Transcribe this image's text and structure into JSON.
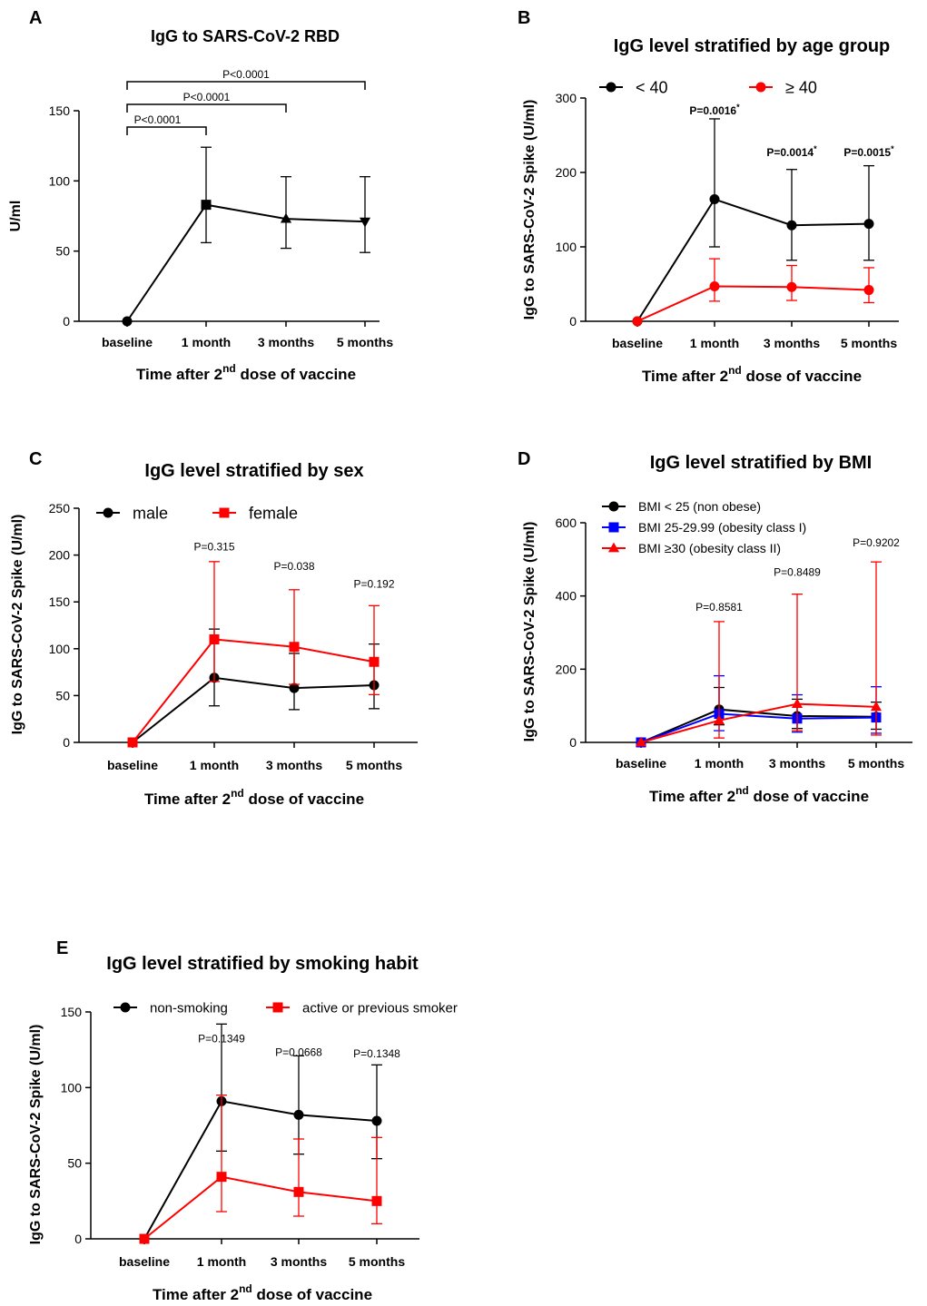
{
  "chart_data": [
    {
      "id": "A",
      "letter": "A",
      "type": "line",
      "title": "IgG to SARS-CoV-2 RBD",
      "xlabel": "Time after 2",
      "xlabel_sup": "nd",
      "xlabel_rest": " dose of vaccine",
      "ylabel": "U/ml",
      "ylim": [
        0,
        150
      ],
      "yticks": [
        0,
        50,
        100,
        150
      ],
      "categories": [
        "baseline",
        "1 month",
        "3 months",
        "5 months"
      ],
      "series": [
        {
          "color": "#000000",
          "marker": "mixed",
          "markers": [
            "circle",
            "square",
            "triangle",
            "triangle-down"
          ],
          "values": [
            0,
            83,
            73,
            71
          ],
          "err_hi": [
            0,
            124,
            103,
            103
          ],
          "err_lo": [
            0,
            56,
            52,
            49
          ]
        }
      ],
      "brackets": [
        {
          "text": "P<0.0001",
          "from": 0,
          "to": 1
        },
        {
          "text": "P<0.0001",
          "from": 0,
          "to": 2
        },
        {
          "text": "P<0.0001",
          "from": 0,
          "to": 3
        }
      ],
      "pvalues": []
    },
    {
      "id": "B",
      "letter": "B",
      "type": "line",
      "title": "IgG level stratified by age group",
      "xlabel": "Time after 2",
      "xlabel_sup": "nd",
      "xlabel_rest": " dose of vaccine",
      "ylabel": "IgG to SARS-CoV-2 Spike (U/ml)",
      "ylim": [
        0,
        300
      ],
      "yticks": [
        0,
        100,
        200,
        300
      ],
      "categories": [
        "baseline",
        "1 month",
        "3 months",
        "5 months"
      ],
      "legend": [
        {
          "name": "< 40",
          "color": "#000000",
          "marker": "circle"
        },
        {
          "name": "≥ 40",
          "color": "#ff0000",
          "marker": "circle"
        }
      ],
      "series": [
        {
          "name": "< 40",
          "color": "#000000",
          "marker": "circle",
          "values": [
            0,
            164,
            129,
            131
          ],
          "err_hi": [
            0,
            272,
            204,
            209
          ],
          "err_lo": [
            0,
            100,
            82,
            82
          ]
        },
        {
          "name": "≥ 40",
          "color": "#ff0000",
          "marker": "circle",
          "values": [
            0,
            47,
            46,
            42
          ],
          "err_hi": [
            0,
            84,
            75,
            72
          ],
          "err_lo": [
            0,
            27,
            28,
            25
          ]
        }
      ],
      "pvalues": [
        {
          "text": "P=0.0016",
          "star": "*",
          "x": 1,
          "y": 278,
          "color": "#ff0000",
          "bold": true
        },
        {
          "text": "P=0.0014",
          "star": "*",
          "x": 2,
          "y": 222,
          "color": "#ff0000",
          "bold": true
        },
        {
          "text": "P=0.0015",
          "star": "*",
          "x": 3,
          "y": 222,
          "color": "#ff0000",
          "bold": true
        }
      ]
    },
    {
      "id": "C",
      "letter": "C",
      "type": "line",
      "title": "IgG level stratified by sex",
      "xlabel": "Time after 2",
      "xlabel_sup": "nd",
      "xlabel_rest": " dose of vaccine",
      "ylabel": "IgG to SARS-CoV-2 Spike (U/ml)",
      "ylim": [
        0,
        250
      ],
      "yticks": [
        0,
        50,
        100,
        150,
        200,
        250
      ],
      "categories": [
        "baseline",
        "1 month",
        "3 months",
        "5 months"
      ],
      "legend": [
        {
          "name": "male",
          "color": "#000000",
          "marker": "circle"
        },
        {
          "name": "female",
          "color": "#ff0000",
          "marker": "square"
        }
      ],
      "series": [
        {
          "name": "male",
          "color": "#000000",
          "marker": "circle",
          "values": [
            0,
            69,
            58,
            61
          ],
          "err_hi": [
            0,
            121,
            95,
            105
          ],
          "err_lo": [
            0,
            39,
            35,
            36
          ]
        },
        {
          "name": "female",
          "color": "#ff0000",
          "marker": "square",
          "values": [
            0,
            110,
            102,
            86
          ],
          "err_hi": [
            0,
            193,
            163,
            146
          ],
          "err_lo": [
            0,
            65,
            62,
            51
          ]
        }
      ],
      "pvalues": [
        {
          "text": "P=0.315",
          "x": 1,
          "y": 205,
          "color": "#000000",
          "bold": false
        },
        {
          "text": "P=0.038",
          "x": 2,
          "y": 184,
          "color": "#000000",
          "bold": false
        },
        {
          "text": "P=0.192",
          "x": 3,
          "y": 165,
          "color": "#000000",
          "bold": false
        }
      ]
    },
    {
      "id": "D",
      "letter": "D",
      "type": "line",
      "title": "IgG level stratified by BMI",
      "xlabel": "Time after 2",
      "xlabel_sup": "nd",
      "xlabel_rest": " dose of vaccine",
      "ylabel": "IgG to SARS-CoV-2 Spike (U/ml)",
      "ylim": [
        0,
        600
      ],
      "yticks": [
        0,
        200,
        400,
        600
      ],
      "categories": [
        "baseline",
        "1 month",
        "3 months",
        "5 months"
      ],
      "legend": [
        {
          "name": "BMI < 25 (non obese)",
          "color": "#000000",
          "marker": "circle"
        },
        {
          "name": "BMI 25-29.99 (obesity class I)",
          "color": "#0000ff",
          "marker": "square"
        },
        {
          "name": "BMI ≥30 (obesity class II)",
          "color": "#ff0000",
          "marker": "triangle"
        }
      ],
      "series": [
        {
          "name": "BMI < 25 (non obese)",
          "color": "#000000",
          "marker": "circle",
          "values": [
            0,
            90,
            72,
            70
          ],
          "err_hi": [
            0,
            150,
            118,
            110
          ],
          "err_lo": [
            0,
            48,
            38,
            36
          ]
        },
        {
          "name": "BMI 25-29.99 (obesity class I)",
          "color": "#0000ff",
          "marker": "square",
          "values": [
            0,
            78,
            65,
            68
          ],
          "err_hi": [
            0,
            182,
            130,
            152
          ],
          "err_lo": [
            0,
            32,
            28,
            25
          ]
        },
        {
          "name": "BMI ≥30 (obesity class II)",
          "color": "#ff0000",
          "marker": "triangle",
          "values": [
            0,
            60,
            105,
            97
          ],
          "err_hi": [
            0,
            330,
            405,
            493
          ],
          "err_lo": [
            0,
            12,
            32,
            20
          ]
        }
      ],
      "pvalues": [
        {
          "text": "P=0.8581",
          "x": 1,
          "y": 360,
          "color": "#000000",
          "bold": false
        },
        {
          "text": "P=0.8489",
          "x": 2,
          "y": 455,
          "color": "#000000",
          "bold": false
        },
        {
          "text": "P=0.9202",
          "x": 3,
          "y": 535,
          "color": "#000000",
          "bold": false
        }
      ]
    },
    {
      "id": "E",
      "letter": "E",
      "type": "line",
      "title": "IgG level stratified by smoking habit",
      "xlabel": "Time after 2",
      "xlabel_sup": "nd",
      "xlabel_rest": " dose of vaccine",
      "ylabel": "IgG to SARS-CoV-2 Spike (U/ml)",
      "ylim": [
        0,
        150
      ],
      "yticks": [
        0,
        50,
        100,
        150
      ],
      "categories": [
        "baseline",
        "1 month",
        "3 months",
        "5 months"
      ],
      "legend": [
        {
          "name": "non-smoking",
          "color": "#000000",
          "marker": "circle"
        },
        {
          "name": "active or previous smoker",
          "color": "#ff0000",
          "marker": "square"
        }
      ],
      "series": [
        {
          "name": "non-smoking",
          "color": "#000000",
          "marker": "circle",
          "values": [
            0,
            91,
            82,
            78
          ],
          "err_hi": [
            0,
            142,
            121,
            115
          ],
          "err_lo": [
            0,
            58,
            56,
            53
          ]
        },
        {
          "name": "active or previous smoker",
          "color": "#ff0000",
          "marker": "square",
          "values": [
            0,
            41,
            31,
            25
          ],
          "err_hi": [
            0,
            95,
            66,
            67
          ],
          "err_lo": [
            0,
            18,
            15,
            10
          ]
        }
      ],
      "pvalues": [
        {
          "text": "P=0.1349",
          "x": 1,
          "y": 130,
          "color": "#000000",
          "bold": false
        },
        {
          "text": "P=0.0668",
          "x": 2,
          "y": 121,
          "color": "#000000",
          "bold": false
        },
        {
          "text": "P=0.1348",
          "x": 3,
          "y": 120,
          "color": "#000000",
          "bold": false
        }
      ]
    }
  ]
}
